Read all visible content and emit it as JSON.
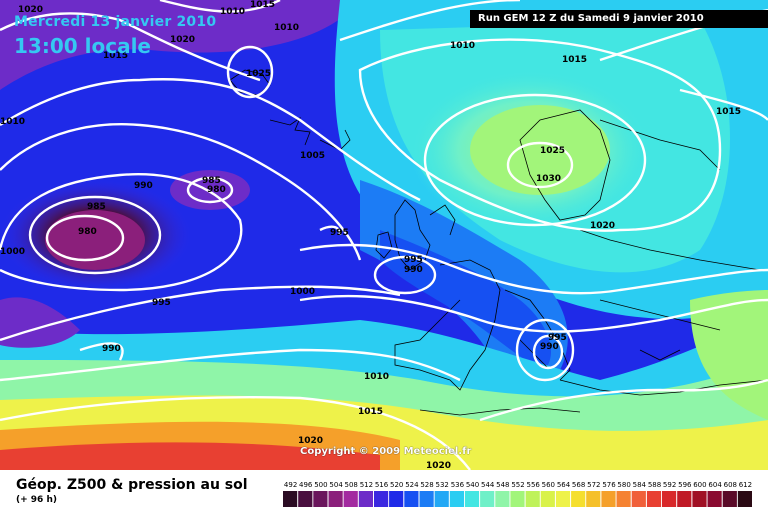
{
  "header": {
    "date": "Mercredi 13 janvier 2010",
    "time": "13:00 locale",
    "run": "Run GEM 12 Z du Samedi 9 janvier 2010"
  },
  "copyright": "Copyright © 2009 Meteociel.fr",
  "footer": {
    "title": "Géop. Z500 & pression au sol",
    "subtitle": "(+ 96 h)"
  },
  "legend": {
    "values": [
      "492",
      "496",
      "500",
      "504",
      "508",
      "512",
      "516",
      "520",
      "524",
      "528",
      "532",
      "536",
      "540",
      "544",
      "548",
      "552",
      "556",
      "560",
      "564",
      "568",
      "572",
      "576",
      "580",
      "584",
      "588",
      "592",
      "596",
      "600",
      "604",
      "608",
      "612"
    ],
    "colors": [
      "#2b0c23",
      "#4a0f3f",
      "#6a155c",
      "#8b1f7b",
      "#a32aa0",
      "#6d2cc8",
      "#3b27e0",
      "#1f2ae8",
      "#1650f2",
      "#1c7cf5",
      "#22a8f5",
      "#2bcdf2",
      "#43e6e2",
      "#6ff0c8",
      "#8ff5a8",
      "#a2f57a",
      "#bff25a",
      "#d9f24a",
      "#eef24a",
      "#f5df2e",
      "#f5c02a",
      "#f5a02a",
      "#f58232",
      "#f0603a",
      "#e84032",
      "#d8282a",
      "#c01a26",
      "#a01024",
      "#8a0a30",
      "#5a0a28",
      "#2b0a14"
    ]
  },
  "isobars": [
    {
      "label": "1020",
      "id": "nw-1020"
    },
    {
      "label": "1010",
      "id": "n-1010"
    },
    {
      "label": "1015",
      "id": "n-1015"
    },
    {
      "label": "1010",
      "id": "n2-1010"
    },
    {
      "label": "1020",
      "id": "w-1020"
    },
    {
      "label": "1015",
      "id": "w-1015"
    },
    {
      "label": "1025",
      "id": "ice-1025"
    },
    {
      "label": "1010",
      "id": "w-1010"
    },
    {
      "label": "1005",
      "id": "c-1005"
    },
    {
      "label": "990",
      "id": "w-990"
    },
    {
      "label": "985",
      "id": "c-985"
    },
    {
      "label": "980",
      "id": "c-980"
    },
    {
      "label": "985",
      "id": "w-985"
    },
    {
      "label": "980",
      "id": "low-980"
    },
    {
      "label": "1000",
      "id": "w-1000"
    },
    {
      "label": "995",
      "id": "c-995"
    },
    {
      "label": "995",
      "id": "uk-995"
    },
    {
      "label": "990",
      "id": "uk-990"
    },
    {
      "label": "1000",
      "id": "atl-1000"
    },
    {
      "label": "995",
      "id": "atl-995"
    },
    {
      "label": "990",
      "id": "atl-990"
    },
    {
      "label": "1010",
      "id": "ne-1010"
    },
    {
      "label": "1015",
      "id": "ne-1015"
    },
    {
      "label": "1015",
      "id": "e-1015"
    },
    {
      "label": "1025",
      "id": "scan-1025"
    },
    {
      "label": "1030",
      "id": "scan-1030"
    },
    {
      "label": "1020",
      "id": "eu-1020"
    },
    {
      "label": "995",
      "id": "med-995"
    },
    {
      "label": "990",
      "id": "med-990"
    },
    {
      "label": "1010",
      "id": "s-1010"
    },
    {
      "label": "1015",
      "id": "s-1015"
    },
    {
      "label": "1020",
      "id": "s-1020"
    },
    {
      "label": "1020",
      "id": "s2-1020"
    }
  ]
}
